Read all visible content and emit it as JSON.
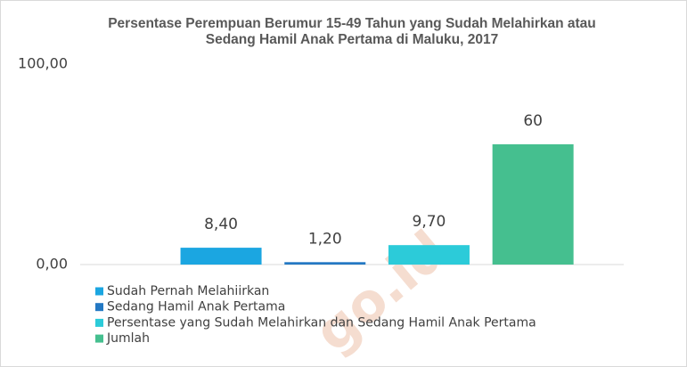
{
  "chart_data": {
    "type": "bar",
    "title": "Persentase Perempuan Berumur 15-49 Tahun yang Sudah Melahirkan atau Sedang Hamil Anak Pertama di Maluku, 2017",
    "series": [
      {
        "name": "Sudah Pernah Melahiirkan",
        "color": "#1ba6e1",
        "values": [
          8.4
        ],
        "value_labels": [
          "8,40"
        ]
      },
      {
        "name": "Sedang Hamil Anak Pertama",
        "color": "#2378c3",
        "values": [
          1.2
        ],
        "value_labels": [
          "1,20"
        ]
      },
      {
        "name": "Persentase yang Sudah Melahirkan dan Sedang Hamil Anak Pertama",
        "color": "#2ccbd9",
        "values": [
          9.7
        ],
        "value_labels": [
          "9,70"
        ]
      },
      {
        "name": "Jumlah",
        "color": "#45bf8f",
        "values": [
          60
        ],
        "value_labels": [
          "60"
        ]
      }
    ],
    "ylim": [
      0,
      100
    ],
    "yticks": [
      {
        "value": 0,
        "label": "0,00"
      },
      {
        "value": 100,
        "label": "100,00"
      }
    ],
    "legend": "bottom-left",
    "watermark": "go.id"
  }
}
